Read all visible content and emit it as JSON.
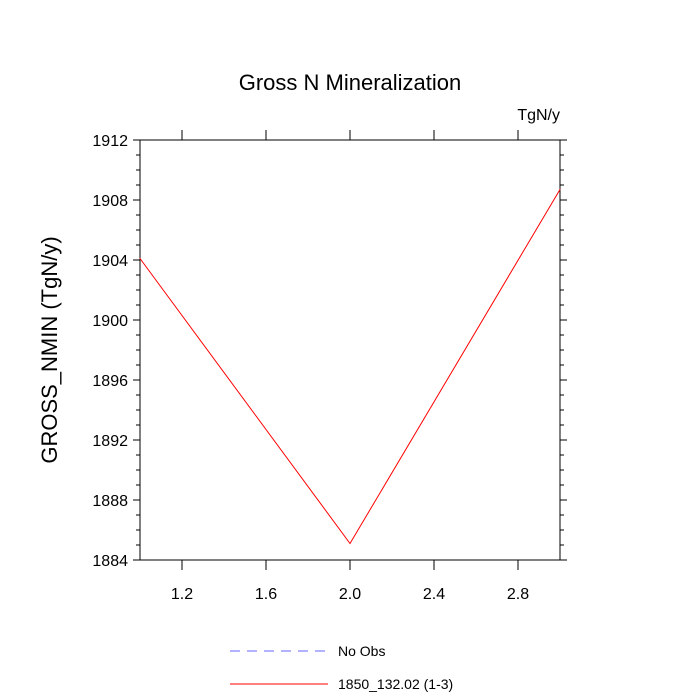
{
  "chart_data": {
    "type": "line",
    "title": "Gross N Mineralization",
    "units_label": "TgN/y",
    "ylabel": "GROSS_NMIN  (TgN/y)",
    "xlabel": "",
    "xlim": [
      1.0,
      3.0
    ],
    "ylim": [
      1884,
      1912
    ],
    "xticks": [
      1.2,
      1.6,
      2.0,
      2.4,
      2.8
    ],
    "xtick_labels": [
      "1.2",
      "1.6",
      "2.0",
      "2.4",
      "2.8"
    ],
    "yticks": [
      1884,
      1888,
      1892,
      1896,
      1900,
      1904,
      1908,
      1912
    ],
    "ytick_labels": [
      "1884",
      "1888",
      "1892",
      "1896",
      "1900",
      "1904",
      "1908",
      "1912"
    ],
    "grid": false,
    "legend_position": "bottom",
    "series": [
      {
        "name": "1850_132.02 (1-3)",
        "color": "#ff0000",
        "style": "solid",
        "x": [
          1.0,
          2.0,
          3.0
        ],
        "y": [
          1904.1,
          1885.1,
          1908.7
        ]
      }
    ],
    "legend": [
      {
        "label": "No Obs",
        "color": "#6666ff",
        "style": "dashed"
      },
      {
        "label": "1850_132.02 (1-3)",
        "color": "#ff0000",
        "style": "solid"
      }
    ]
  }
}
